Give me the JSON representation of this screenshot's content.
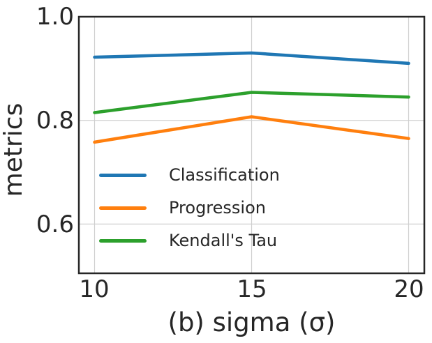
{
  "figure": {
    "background": "#ffffff",
    "text_color": "#262626",
    "grid_color": "#cfcfcf",
    "spine_color": "#262626"
  },
  "chart_data": {
    "type": "line",
    "title": "",
    "xlabel": "(b) sigma (σ)",
    "ylabel": "metrics",
    "x": [
      10,
      15,
      20
    ],
    "series": [
      {
        "name": "Classification",
        "color": "#1f77b4",
        "values": [
          0.922,
          0.93,
          0.91
        ]
      },
      {
        "name": "Progression",
        "color": "#ff7f0e",
        "values": [
          0.758,
          0.807,
          0.765
        ]
      },
      {
        "name": "Kendall's Tau",
        "color": "#2ca02c",
        "values": [
          0.815,
          0.854,
          0.845
        ]
      }
    ],
    "xlim": [
      9.5,
      20.5
    ],
    "ylim": [
      0.505,
      1.0
    ],
    "xticks": [
      10,
      15,
      20
    ],
    "yticks": [
      1.0,
      0.8,
      0.6
    ],
    "xtick_labels": [
      "10",
      "15",
      "20"
    ],
    "ytick_labels": [
      "1.0",
      "0.8",
      "0.6"
    ],
    "grid": true,
    "legend_position": "center-left",
    "legend_frame": false
  }
}
